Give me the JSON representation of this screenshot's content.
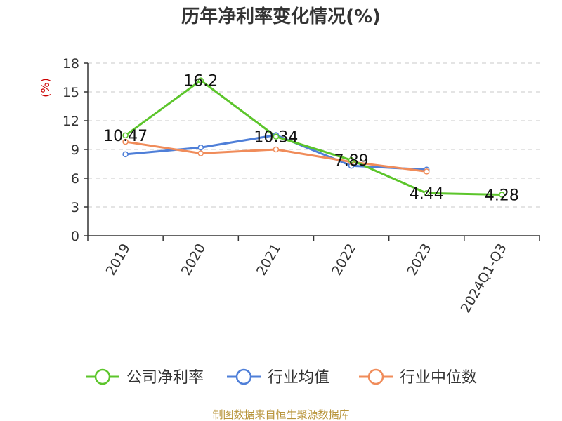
{
  "chart_data": {
    "type": "line",
    "title": "历年净利率变化情况(%)",
    "ylabel": "(%)",
    "xlabel": "",
    "categories": [
      "2019",
      "2020",
      "2021",
      "2022",
      "2023",
      "2024Q1-Q3"
    ],
    "yticks": [
      "0",
      "3",
      "6",
      "9",
      "12",
      "15",
      "18"
    ],
    "ylim": [
      0,
      18
    ],
    "grid": true,
    "legend": "bottom",
    "series": [
      {
        "name": "公司净利率",
        "color": "#5cc52b",
        "values": [
          10.47,
          16.2,
          10.34,
          7.89,
          4.44,
          4.28
        ],
        "labels": [
          "10.47",
          "16.2",
          "10.34",
          "7.89",
          "4.44",
          "4.28"
        ]
      },
      {
        "name": "行业均值",
        "color": "#4f7fd8",
        "values": [
          8.5,
          9.2,
          10.5,
          7.3,
          6.9,
          null
        ]
      },
      {
        "name": "行业中位数",
        "color": "#f08c5a",
        "values": [
          9.8,
          8.6,
          9.0,
          7.7,
          6.7,
          null
        ]
      }
    ]
  },
  "source": "制图数据来自恒生聚源数据库"
}
